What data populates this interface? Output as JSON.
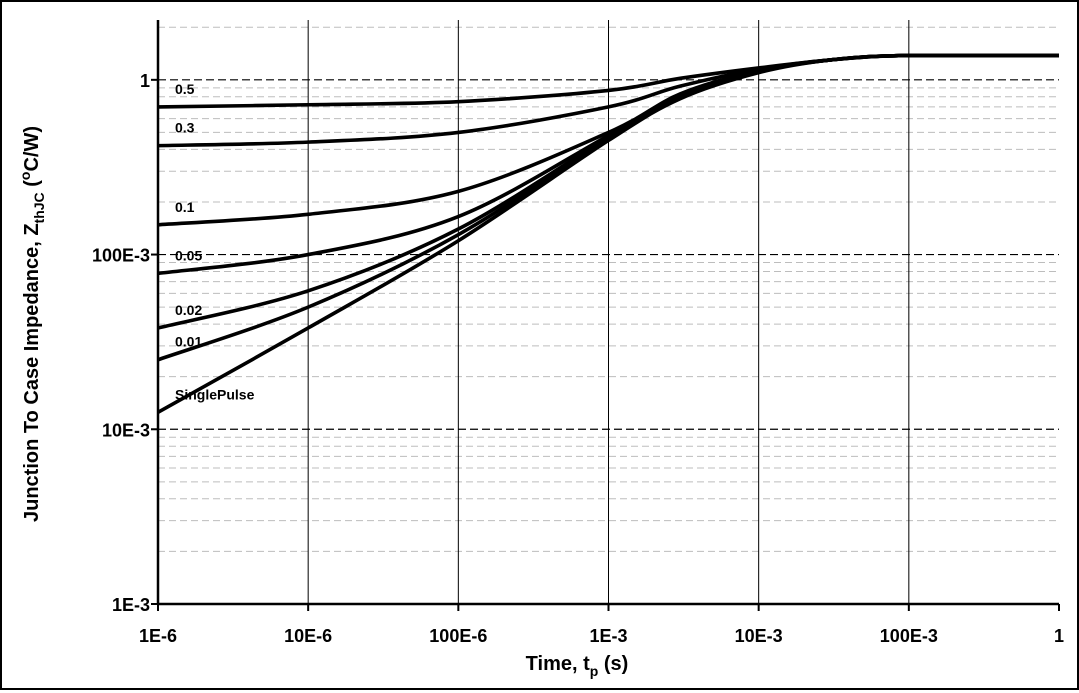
{
  "chart_data": {
    "type": "line",
    "x_scale": "log",
    "y_scale": "log",
    "xlim": [
      1e-06,
      1
    ],
    "ylim": [
      0.001,
      2.2
    ],
    "x_ticks": [
      {
        "value": 1e-06,
        "label": "1E-6"
      },
      {
        "value": 1e-05,
        "label": "10E-6"
      },
      {
        "value": 0.0001,
        "label": "100E-6"
      },
      {
        "value": 0.001,
        "label": "1E-3"
      },
      {
        "value": 0.01,
        "label": "10E-3"
      },
      {
        "value": 0.1,
        "label": "100E-3"
      },
      {
        "value": 1,
        "label": "1"
      }
    ],
    "y_ticks": [
      {
        "value": 0.001,
        "label": "1E-3"
      },
      {
        "value": 0.01,
        "label": "10E-3"
      },
      {
        "value": 0.1,
        "label": "100E-3"
      },
      {
        "value": 1,
        "label": "1"
      }
    ],
    "xlabel": {
      "main": "Time, t",
      "sub": "p",
      "tail": " (s)"
    },
    "ylabel": {
      "main": "Junction To Case Impedance, Z",
      "sub": "thJC",
      "mid": " (",
      "sup": "o",
      "tail": "C/W)"
    },
    "series": [
      {
        "name": "0.5",
        "x": [
          1e-06,
          1e-05,
          0.0001,
          0.001,
          0.003,
          0.01,
          0.03,
          0.1,
          1
        ],
        "y": [
          0.7,
          0.72,
          0.75,
          0.87,
          1.02,
          1.17,
          1.3,
          1.38,
          1.38
        ]
      },
      {
        "name": "0.3",
        "x": [
          1e-06,
          1e-05,
          0.0001,
          0.001,
          0.003,
          0.01,
          0.03,
          0.1,
          1
        ],
        "y": [
          0.42,
          0.44,
          0.5,
          0.7,
          0.92,
          1.15,
          1.3,
          1.38,
          1.38
        ]
      },
      {
        "name": "0.1",
        "x": [
          1e-06,
          1e-05,
          0.0001,
          0.001,
          0.003,
          0.01,
          0.03,
          0.1,
          1
        ],
        "y": [
          0.148,
          0.17,
          0.23,
          0.5,
          0.83,
          1.13,
          1.3,
          1.38,
          1.38
        ]
      },
      {
        "name": "0.05",
        "x": [
          1e-06,
          1e-05,
          0.0001,
          0.001,
          0.003,
          0.01,
          0.03,
          0.1,
          1
        ],
        "y": [
          0.078,
          0.1,
          0.165,
          0.48,
          0.81,
          1.12,
          1.3,
          1.38,
          1.38
        ]
      },
      {
        "name": "0.02",
        "x": [
          1e-06,
          1e-05,
          0.0001,
          0.001,
          0.003,
          0.01,
          0.03,
          0.1,
          1
        ],
        "y": [
          0.038,
          0.062,
          0.14,
          0.47,
          0.8,
          1.12,
          1.3,
          1.38,
          1.38
        ]
      },
      {
        "name": "0.01",
        "x": [
          1e-06,
          1e-05,
          0.0001,
          0.001,
          0.003,
          0.01,
          0.03,
          0.1,
          1
        ],
        "y": [
          0.025,
          0.05,
          0.13,
          0.46,
          0.79,
          1.11,
          1.3,
          1.38,
          1.38
        ]
      },
      {
        "name": "SinglePulse",
        "x": [
          1e-06,
          1e-05,
          0.0001,
          0.001,
          0.003,
          0.01,
          0.03,
          0.1,
          1
        ],
        "y": [
          0.0125,
          0.038,
          0.12,
          0.45,
          0.78,
          1.1,
          1.3,
          1.38,
          1.38
        ]
      }
    ]
  }
}
